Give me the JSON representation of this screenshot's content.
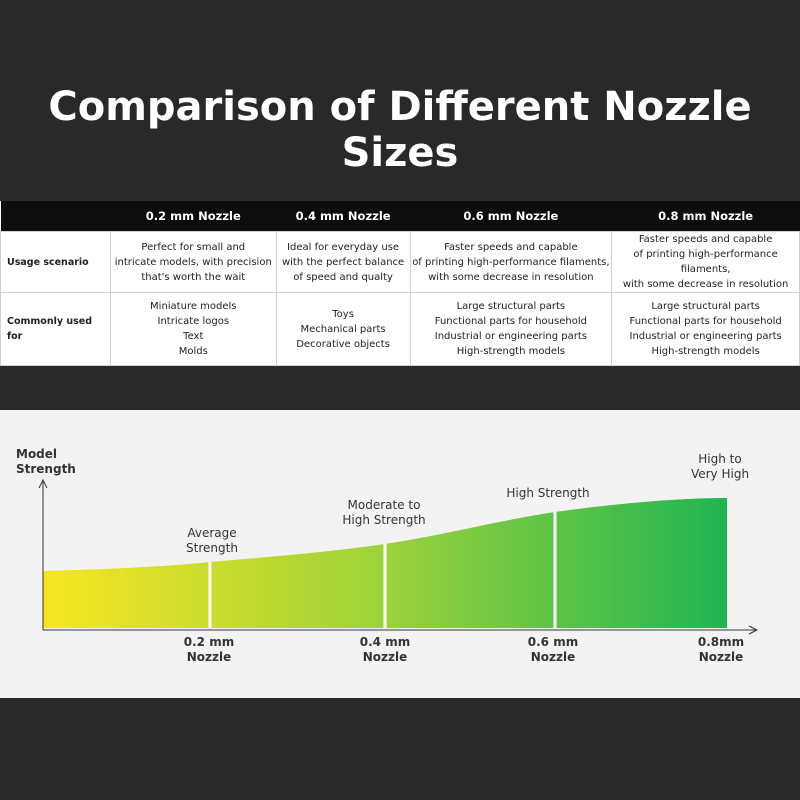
{
  "header": {
    "title": "Comparison of Different Nozzle Sizes"
  },
  "table": {
    "columns": [
      "0.2 mm Nozzle",
      "0.4 mm Nozzle",
      "0.6 mm Nozzle",
      "0.8 mm Nozzle"
    ],
    "rows": [
      {
        "label": "Usage scenario",
        "cells": [
          [
            "Perfect for small and",
            "intricate models, with precision",
            "that's worth the wait"
          ],
          [
            "Ideal for everyday use",
            "with the perfect balance",
            "of speed and qualty"
          ],
          [
            "Faster speeds and capable",
            "of printing high-performance filaments,",
            "with some decrease in resolution"
          ],
          [
            "Faster speeds and capable",
            "of printing high-performance filaments,",
            "with some decrease in resolution"
          ]
        ]
      },
      {
        "label": "Commonly used for",
        "cells": [
          [
            "Miniature models",
            "Intricate logos",
            "Text",
            "Molds"
          ],
          [
            "Toys",
            "Mechanical parts",
            "Decorative objects"
          ],
          [
            "Large structural parts",
            "Functional parts for household",
            "Industrial or engineering parts",
            "High-strength models"
          ],
          [
            "Large structural parts",
            "Functional parts for household",
            "Industrial or engineering parts",
            "High-strength models"
          ]
        ]
      }
    ]
  },
  "diagram": {
    "y_axis_label": [
      "Model",
      "Strength"
    ],
    "x_labels": [
      [
        "0.2 mm",
        "Nozzle"
      ],
      [
        "0.4 mm",
        "Nozzle"
      ],
      [
        "0.6 mm",
        "Nozzle"
      ],
      [
        "0.8mm",
        "Nozzle"
      ]
    ],
    "strength_labels": [
      [
        "Average",
        "Strength"
      ],
      [
        "Moderate to",
        "High Strength"
      ],
      [
        "High Strength"
      ],
      [
        "High to",
        "Very High"
      ]
    ]
  }
}
